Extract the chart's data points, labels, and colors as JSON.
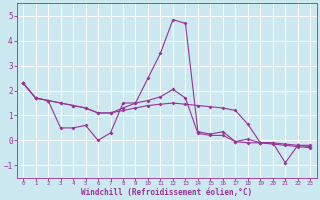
{
  "xlabel": "Windchill (Refroidissement éolien,°C)",
  "background_color": "#cce8f0",
  "line_color": "#993399",
  "xlim": [
    -0.5,
    23.5
  ],
  "ylim": [
    -1.5,
    5.5
  ],
  "yticks": [
    -1,
    0,
    1,
    2,
    3,
    4,
    5
  ],
  "xticks": [
    0,
    1,
    2,
    3,
    4,
    5,
    6,
    7,
    8,
    9,
    10,
    11,
    12,
    13,
    14,
    15,
    16,
    17,
    18,
    19,
    20,
    21,
    22,
    23
  ],
  "series": [
    [
      2.3,
      1.7,
      1.6,
      0.5,
      0.5,
      0.6,
      0.0,
      0.3,
      1.5,
      1.5,
      2.5,
      3.5,
      4.85,
      4.7,
      0.35,
      0.25,
      0.35,
      -0.05,
      0.05,
      -0.1,
      -0.1,
      -0.9,
      -0.2,
      -0.2
    ],
    [
      2.3,
      1.7,
      1.6,
      1.5,
      1.4,
      1.3,
      1.1,
      1.1,
      1.3,
      1.5,
      1.6,
      1.75,
      2.05,
      1.7,
      0.28,
      0.2,
      0.2,
      -0.05,
      -0.1,
      -0.1,
      -0.15,
      -0.2,
      -0.25,
      -0.3
    ],
    [
      2.3,
      1.7,
      1.6,
      1.5,
      1.4,
      1.3,
      1.1,
      1.1,
      1.2,
      1.3,
      1.4,
      1.45,
      1.5,
      1.45,
      1.4,
      1.35,
      1.3,
      1.2,
      0.65,
      -0.1,
      -0.1,
      -0.15,
      -0.2,
      -0.25
    ]
  ],
  "x_values": [
    0,
    1,
    2,
    3,
    4,
    5,
    6,
    7,
    8,
    9,
    10,
    11,
    12,
    13,
    14,
    15,
    16,
    17,
    18,
    19,
    20,
    21,
    22,
    23
  ]
}
